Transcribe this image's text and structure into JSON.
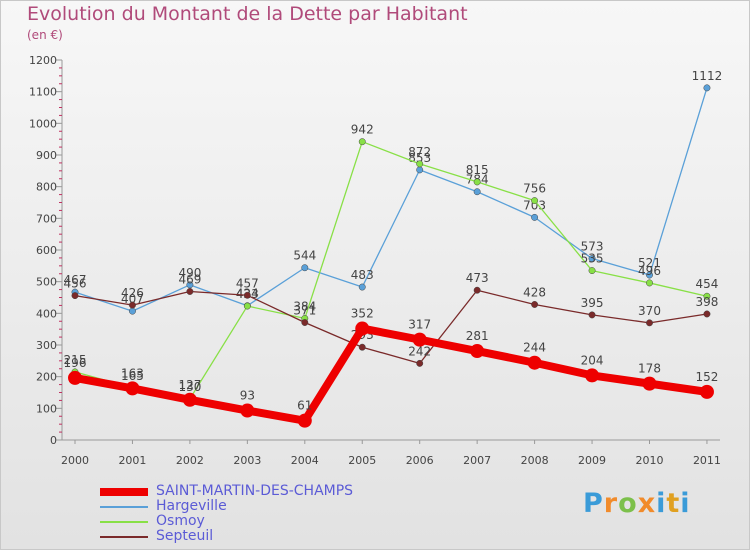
{
  "title": "Evolution du Montant de la Dette par Habitant",
  "subtitle": "(en €)",
  "logo": {
    "letters": [
      "P",
      "r",
      "o",
      "x",
      "i",
      "t",
      "i"
    ]
  },
  "chart_data": {
    "type": "line",
    "x": [
      "2000",
      "2001",
      "2002",
      "2003",
      "2004",
      "2005",
      "2006",
      "2007",
      "2008",
      "2009",
      "2010",
      "2011"
    ],
    "ylim": [
      0,
      1200
    ],
    "yticks": [
      0,
      100,
      200,
      300,
      400,
      500,
      600,
      700,
      800,
      900,
      1000,
      1100,
      1200
    ],
    "grid": false,
    "legend_position": "bottom-left",
    "series": [
      {
        "name": "SAINT-MARTIN-DES-CHAMPS",
        "color": "#ee0000",
        "values": [
          196,
          163,
          127,
          93,
          61,
          352,
          317,
          281,
          244,
          204,
          178,
          152
        ]
      },
      {
        "name": "Hargeville",
        "color": "#5aa0d8",
        "values": [
          467,
          407,
          490,
          424,
          544,
          483,
          853,
          784,
          703,
          573,
          521,
          1112
        ]
      },
      {
        "name": "Osmoy",
        "color": "#88e046",
        "values": [
          215,
          165,
          130,
          423,
          384,
          942,
          872,
          815,
          756,
          535,
          496,
          454
        ]
      },
      {
        "name": "Septeuil",
        "color": "#7a2a2a",
        "values": [
          456,
          426,
          469,
          457,
          371,
          293,
          242,
          473,
          428,
          395,
          370,
          398
        ]
      }
    ]
  }
}
